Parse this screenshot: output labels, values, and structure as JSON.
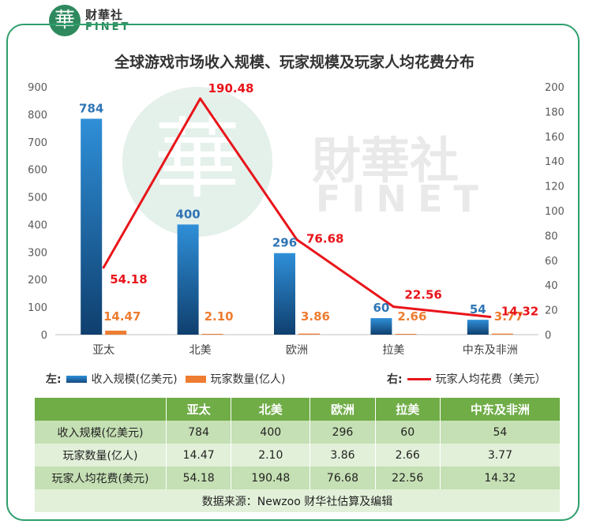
{
  "logo": {
    "badge": "華",
    "cn": "财華社",
    "en": "FINET"
  },
  "watermark": {
    "badge": "華",
    "cn": "財華社",
    "en": "FINET"
  },
  "title": "全球游戏市场收入规模、玩家规模及玩家人均花费分布",
  "chart_data": {
    "type": "bar",
    "title": "全球游戏市场收入规模、玩家规模及玩家人均花费分布",
    "categories": [
      "亚太",
      "北美",
      "欧洲",
      "拉美",
      "中东及非洲"
    ],
    "series": [
      {
        "name": "收入规模(亿美元)",
        "axis": "left",
        "kind": "bar",
        "color": "#1f6fb8",
        "values": [
          784,
          400,
          296,
          60,
          54
        ],
        "labels": [
          "784",
          "400",
          "296",
          "60",
          "54"
        ]
      },
      {
        "name": "玩家数量(亿人)",
        "axis": "left",
        "kind": "bar",
        "color": "#ed7d31",
        "values": [
          14.47,
          2.1,
          3.86,
          2.66,
          3.77
        ],
        "labels": [
          "14.47",
          "2.10",
          "3.86",
          "2.66",
          "3.77"
        ]
      },
      {
        "name": "玩家人均花费（美元）",
        "axis": "right",
        "kind": "line",
        "color": "#e8141a",
        "values": [
          54.18,
          190.48,
          76.68,
          22.56,
          14.32
        ],
        "labels": [
          "54.18",
          "190.48",
          "76.68",
          "22.56",
          "14.32"
        ]
      }
    ],
    "y_left": {
      "min": 0,
      "max": 900,
      "step": 100,
      "ticks": [
        "0",
        "100",
        "200",
        "300",
        "400",
        "500",
        "600",
        "700",
        "800",
        "900"
      ]
    },
    "y_right": {
      "min": 0,
      "max": 200,
      "step": 20,
      "ticks": [
        "0",
        "20",
        "40",
        "60",
        "80",
        "100",
        "120",
        "140",
        "160",
        "180",
        "200"
      ]
    }
  },
  "legend": {
    "left_label": "左:",
    "revenue": "收入规模(亿美元)",
    "players": "玩家数量(亿人)",
    "right_label": "右:",
    "spend": "玩家人均花费（美元）"
  },
  "table": {
    "headers": [
      "亚太",
      "北美",
      "欧洲",
      "拉美",
      "中东及非洲"
    ],
    "rows": [
      {
        "label": "收入规模(亿美元)",
        "cells": [
          "784",
          "400",
          "296",
          "60",
          "54"
        ]
      },
      {
        "label": "玩家数量(亿人)",
        "cells": [
          "14.47",
          "2.10",
          "3.86",
          "2.66",
          "3.77"
        ]
      },
      {
        "label": "玩家人均花费(美元)",
        "cells": [
          "54.18",
          "190.48",
          "76.68",
          "22.56",
          "14.32"
        ]
      }
    ],
    "source": "数据来源：Newzoo 财华社估算及编辑"
  }
}
